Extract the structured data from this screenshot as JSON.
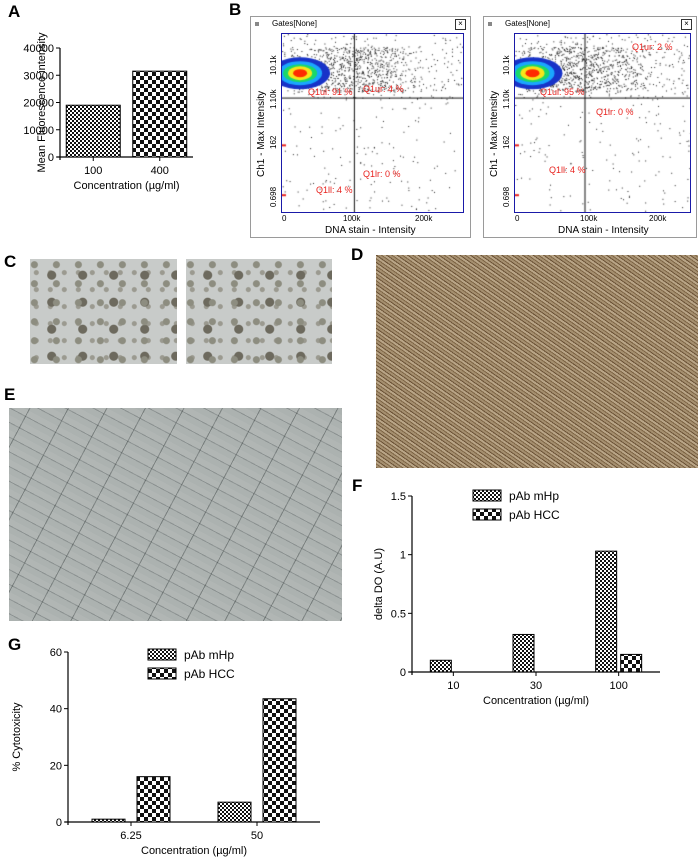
{
  "panels": {
    "A": "A",
    "B": "B",
    "C": "C",
    "D": "D",
    "E": "E",
    "F": "F",
    "G": "G"
  },
  "chart_data": [
    {
      "panel": "A",
      "type": "bar",
      "categories": [
        "100",
        "400"
      ],
      "values": [
        19000,
        31500
      ],
      "xlabel": "Concentration (µg/ml)",
      "ylabel": "Mean Fluorescence intensity",
      "ylim": [
        0,
        40000
      ],
      "yticks": [
        "0",
        "10000",
        "20000",
        "30000",
        "40000"
      ],
      "grid": false
    },
    {
      "panel": "F",
      "type": "bar",
      "categories": [
        "10",
        "30",
        "100"
      ],
      "series": [
        {
          "name": "pAb mHp",
          "values": [
            0.1,
            0.32,
            1.03
          ]
        },
        {
          "name": "pAb HCC",
          "values": [
            0,
            0,
            0.15
          ]
        }
      ],
      "xlabel": "Concentration (µg/ml)",
      "ylabel": "delta DO (A.U)",
      "ylim": [
        0,
        1.5
      ],
      "yticks": [
        "0",
        "0.5",
        "1",
        "1.5"
      ],
      "legend": "top-center",
      "grid": false
    },
    {
      "panel": "G",
      "type": "bar",
      "categories": [
        "6.25",
        "50"
      ],
      "series": [
        {
          "name": "pAb mHp",
          "values": [
            1,
            7
          ]
        },
        {
          "name": "pAb HCC",
          "values": [
            16,
            43.5
          ]
        }
      ],
      "xlabel": "Concentration (µg/ml)",
      "ylabel": "% Cytotoxicity",
      "ylim": [
        0,
        60
      ],
      "yticks": [
        "0",
        "20",
        "40",
        "60"
      ],
      "legend": "top-center",
      "grid": false
    }
  ],
  "flow": [
    {
      "gates": "Gates[None]",
      "close": "×",
      "xlabel": "DNA stain - Intensity",
      "ylabel": "Ch1 - Max Intensity",
      "xticks": [
        "0",
        "100k",
        "200k"
      ],
      "yticks": [
        "0.698",
        "162",
        "1.10k",
        "10.1k"
      ],
      "quadrants": {
        "ul": "Q1ul: 91 %",
        "ur": "Q1ur: 4 %",
        "lr": "Q1lr: 0 %",
        "ll": "Q1ll: 4 %"
      }
    },
    {
      "gates": "Gates[None]",
      "close": "×",
      "xlabel": "DNA stain - Intensity",
      "ylabel": "Ch1 - Max Intensity",
      "xticks": [
        "0",
        "100k",
        "200k"
      ],
      "yticks": [
        "0.698",
        "162",
        "1.10k",
        "10.1k"
      ],
      "quadrants": {
        "ul": "Q1ul: 95 %",
        "ur": "Q1ur: 2 %",
        "lr": "Q1lr: 0 %",
        "ll": "Q1ll: 4 %"
      }
    }
  ],
  "colors": {
    "quadrant_text": "#e8231f",
    "gate_border": "#1a1aa8",
    "density_hot": "#ff2a00"
  }
}
